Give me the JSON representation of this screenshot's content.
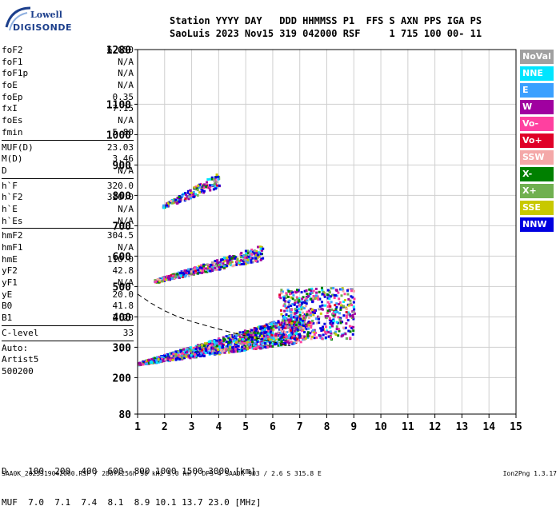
{
  "logo": {
    "text1": "Lowell",
    "text2": "DIGISONDE"
  },
  "header": {
    "line1": "Station YYYY DAY   DDD HHMMSS P1  FFS S AXN PPS IGA PS",
    "line2": "SaoLuis 2023 Nov15 319 042000 RSF     1 715 100 00- 11"
  },
  "params_groups": [
    [
      {
        "label": "foF2",
        "value": "6.650"
      },
      {
        "label": "foF1",
        "value": "N/A"
      },
      {
        "label": "foF1p",
        "value": "N/A"
      },
      {
        "label": "foE",
        "value": "N/A"
      },
      {
        "label": "foEp",
        "value": "0.35"
      },
      {
        "label": "fxI",
        "value": "7.15"
      },
      {
        "label": "foEs",
        "value": "N/A"
      },
      {
        "label": "fmin",
        "value": "5.80"
      }
    ],
    [
      {
        "label": "MUF(D)",
        "value": "23.03"
      },
      {
        "label": "M(D)",
        "value": "3.46"
      },
      {
        "label": "D",
        "value": "N/A"
      }
    ],
    [
      {
        "label": "h`F",
        "value": "320.0"
      },
      {
        "label": "h`F2",
        "value": "320.0"
      },
      {
        "label": "h`E",
        "value": "N/A"
      },
      {
        "label": "h`Es",
        "value": "N/A"
      }
    ],
    [
      {
        "label": "hmF2",
        "value": "304.5"
      },
      {
        "label": "hmF1",
        "value": "N/A"
      },
      {
        "label": "hmE",
        "value": "110.0"
      },
      {
        "label": "yF2",
        "value": "42.8"
      },
      {
        "label": "yF1",
        "value": "N/A"
      },
      {
        "label": "yE",
        "value": "20.0"
      },
      {
        "label": "B0",
        "value": "41.8"
      },
      {
        "label": "B1",
        "value": "2.20"
      }
    ],
    [
      {
        "label": "C-level",
        "value": "33"
      }
    ],
    [
      {
        "label": "Auto:",
        "value": ""
      },
      {
        "label": "Artist5",
        "value": ""
      },
      {
        "label": "500200",
        "value": ""
      }
    ]
  ],
  "legend": [
    {
      "label": "NoVal",
      "color": "#a0a0a0"
    },
    {
      "label": "NNE",
      "color": "#00e5ff"
    },
    {
      "label": "E",
      "color": "#3aa0ff"
    },
    {
      "label": "W",
      "color": "#a000a0"
    },
    {
      "label": "Vo-",
      "color": "#ff40a0"
    },
    {
      "label": "Vo+",
      "color": "#e00028"
    },
    {
      "label": "SSW",
      "color": "#f4a8a8"
    },
    {
      "label": "X-",
      "color": "#008000"
    },
    {
      "label": "X+",
      "color": "#70b050"
    },
    {
      "label": "SSE",
      "color": "#c8c800"
    },
    {
      "label": "NNW",
      "color": "#0000e0"
    }
  ],
  "table": {
    "line1": "D    100  200  400  600  800 1000 1500 3000 [km]",
    "line2": "MUF  7.0  7.1  7.4  8.1  8.9 10.1 13.7 23.0 [MHz]"
  },
  "footer": {
    "left": "SAA0K_2023319042000.RSF / 280fx256h 50 kHz 5.0 km / DPS-4 SAA0K 903 / 2.6 S 315.8 E",
    "right": "Ion2Png 1.3.17"
  },
  "chart_data": {
    "type": "scatter",
    "xlabel": "",
    "ylabel": "",
    "xlim": [
      1,
      15
    ],
    "ylim": [
      80,
      1280
    ],
    "x_ticks": [
      1,
      2,
      3,
      4,
      5,
      6,
      7,
      8,
      9,
      10,
      11,
      12,
      13,
      14,
      15
    ],
    "y_ticks": [
      80,
      200,
      300,
      400,
      500,
      600,
      700,
      800,
      900,
      1000,
      1100,
      1280
    ],
    "grid": true,
    "traces": [
      {
        "name": "F-trace 1st hop",
        "freq_start": 1.0,
        "freq_end": 7.15,
        "h_start": 245,
        "h_end": 320
      },
      {
        "name": "F-trace 2nd hop",
        "freq_start": 1.6,
        "freq_end": 5.6,
        "h_start": 515,
        "h_end": 590
      },
      {
        "name": "F-trace 3rd hop",
        "freq_start": 1.9,
        "freq_end": 4.0,
        "h_start": 760,
        "h_end": 830
      }
    ],
    "profile": {
      "name": "N(h) profile",
      "points": [
        [
          1.0,
          475
        ],
        [
          1.5,
          445
        ],
        [
          2.0,
          420
        ],
        [
          2.5,
          400
        ],
        [
          3.0,
          385
        ],
        [
          3.5,
          372
        ],
        [
          4.0,
          360
        ],
        [
          4.5,
          348
        ],
        [
          5.0,
          338
        ],
        [
          5.5,
          328
        ],
        [
          6.0,
          318
        ],
        [
          6.65,
          304.5
        ]
      ]
    }
  }
}
